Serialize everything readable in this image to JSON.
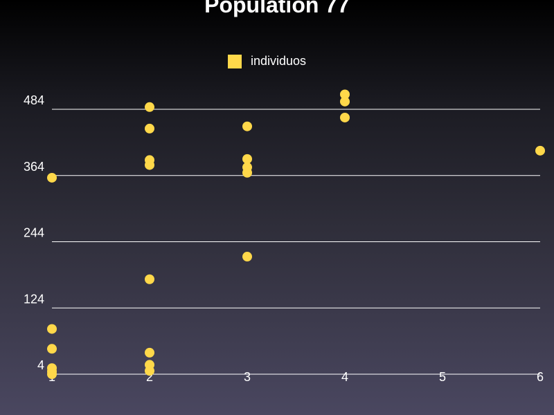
{
  "colors": {
    "point": "#ffd84a",
    "legend_swatch": "#ffd84a",
    "text": "#ffffff",
    "grid": "#ffffff",
    "background_top": "#000000",
    "background_bottom": "#4a4760"
  },
  "chart_data": {
    "type": "scatter",
    "title": "Population 77",
    "xlabel": "",
    "ylabel": "",
    "legend": {
      "placement": "top-center",
      "entries": [
        "individuos"
      ]
    },
    "grid": {
      "horizontal": true,
      "vertical": false
    },
    "xlim": [
      1,
      6
    ],
    "ylim": [
      4,
      484
    ],
    "x_ticks": [
      {
        "value": 1,
        "label": "1"
      },
      {
        "value": 2,
        "label": "2"
      },
      {
        "value": 3,
        "label": "3"
      },
      {
        "value": 4,
        "label": "4"
      },
      {
        "value": 5,
        "label": "5"
      },
      {
        "value": 6,
        "label": "6"
      }
    ],
    "y_ticks": [
      {
        "value": 4,
        "label": "4"
      },
      {
        "value": 124,
        "label": "124"
      },
      {
        "value": 244,
        "label": "244"
      },
      {
        "value": 364,
        "label": "364"
      },
      {
        "value": 484,
        "label": "484"
      }
    ],
    "series": [
      {
        "name": "individuos",
        "points": [
          {
            "x": 1,
            "y": 4
          },
          {
            "x": 1,
            "y": 9
          },
          {
            "x": 1,
            "y": 15
          },
          {
            "x": 1,
            "y": 50
          },
          {
            "x": 1,
            "y": 86
          },
          {
            "x": 1,
            "y": 360
          },
          {
            "x": 2,
            "y": 10
          },
          {
            "x": 2,
            "y": 21
          },
          {
            "x": 2,
            "y": 43
          },
          {
            "x": 2,
            "y": 176
          },
          {
            "x": 2,
            "y": 383
          },
          {
            "x": 2,
            "y": 392
          },
          {
            "x": 2,
            "y": 449
          },
          {
            "x": 2,
            "y": 488
          },
          {
            "x": 3,
            "y": 217
          },
          {
            "x": 3,
            "y": 369
          },
          {
            "x": 3,
            "y": 379
          },
          {
            "x": 3,
            "y": 394
          },
          {
            "x": 3,
            "y": 453
          },
          {
            "x": 4,
            "y": 469
          },
          {
            "x": 4,
            "y": 498
          },
          {
            "x": 4,
            "y": 511
          },
          {
            "x": 6,
            "y": 409
          }
        ]
      }
    ]
  }
}
